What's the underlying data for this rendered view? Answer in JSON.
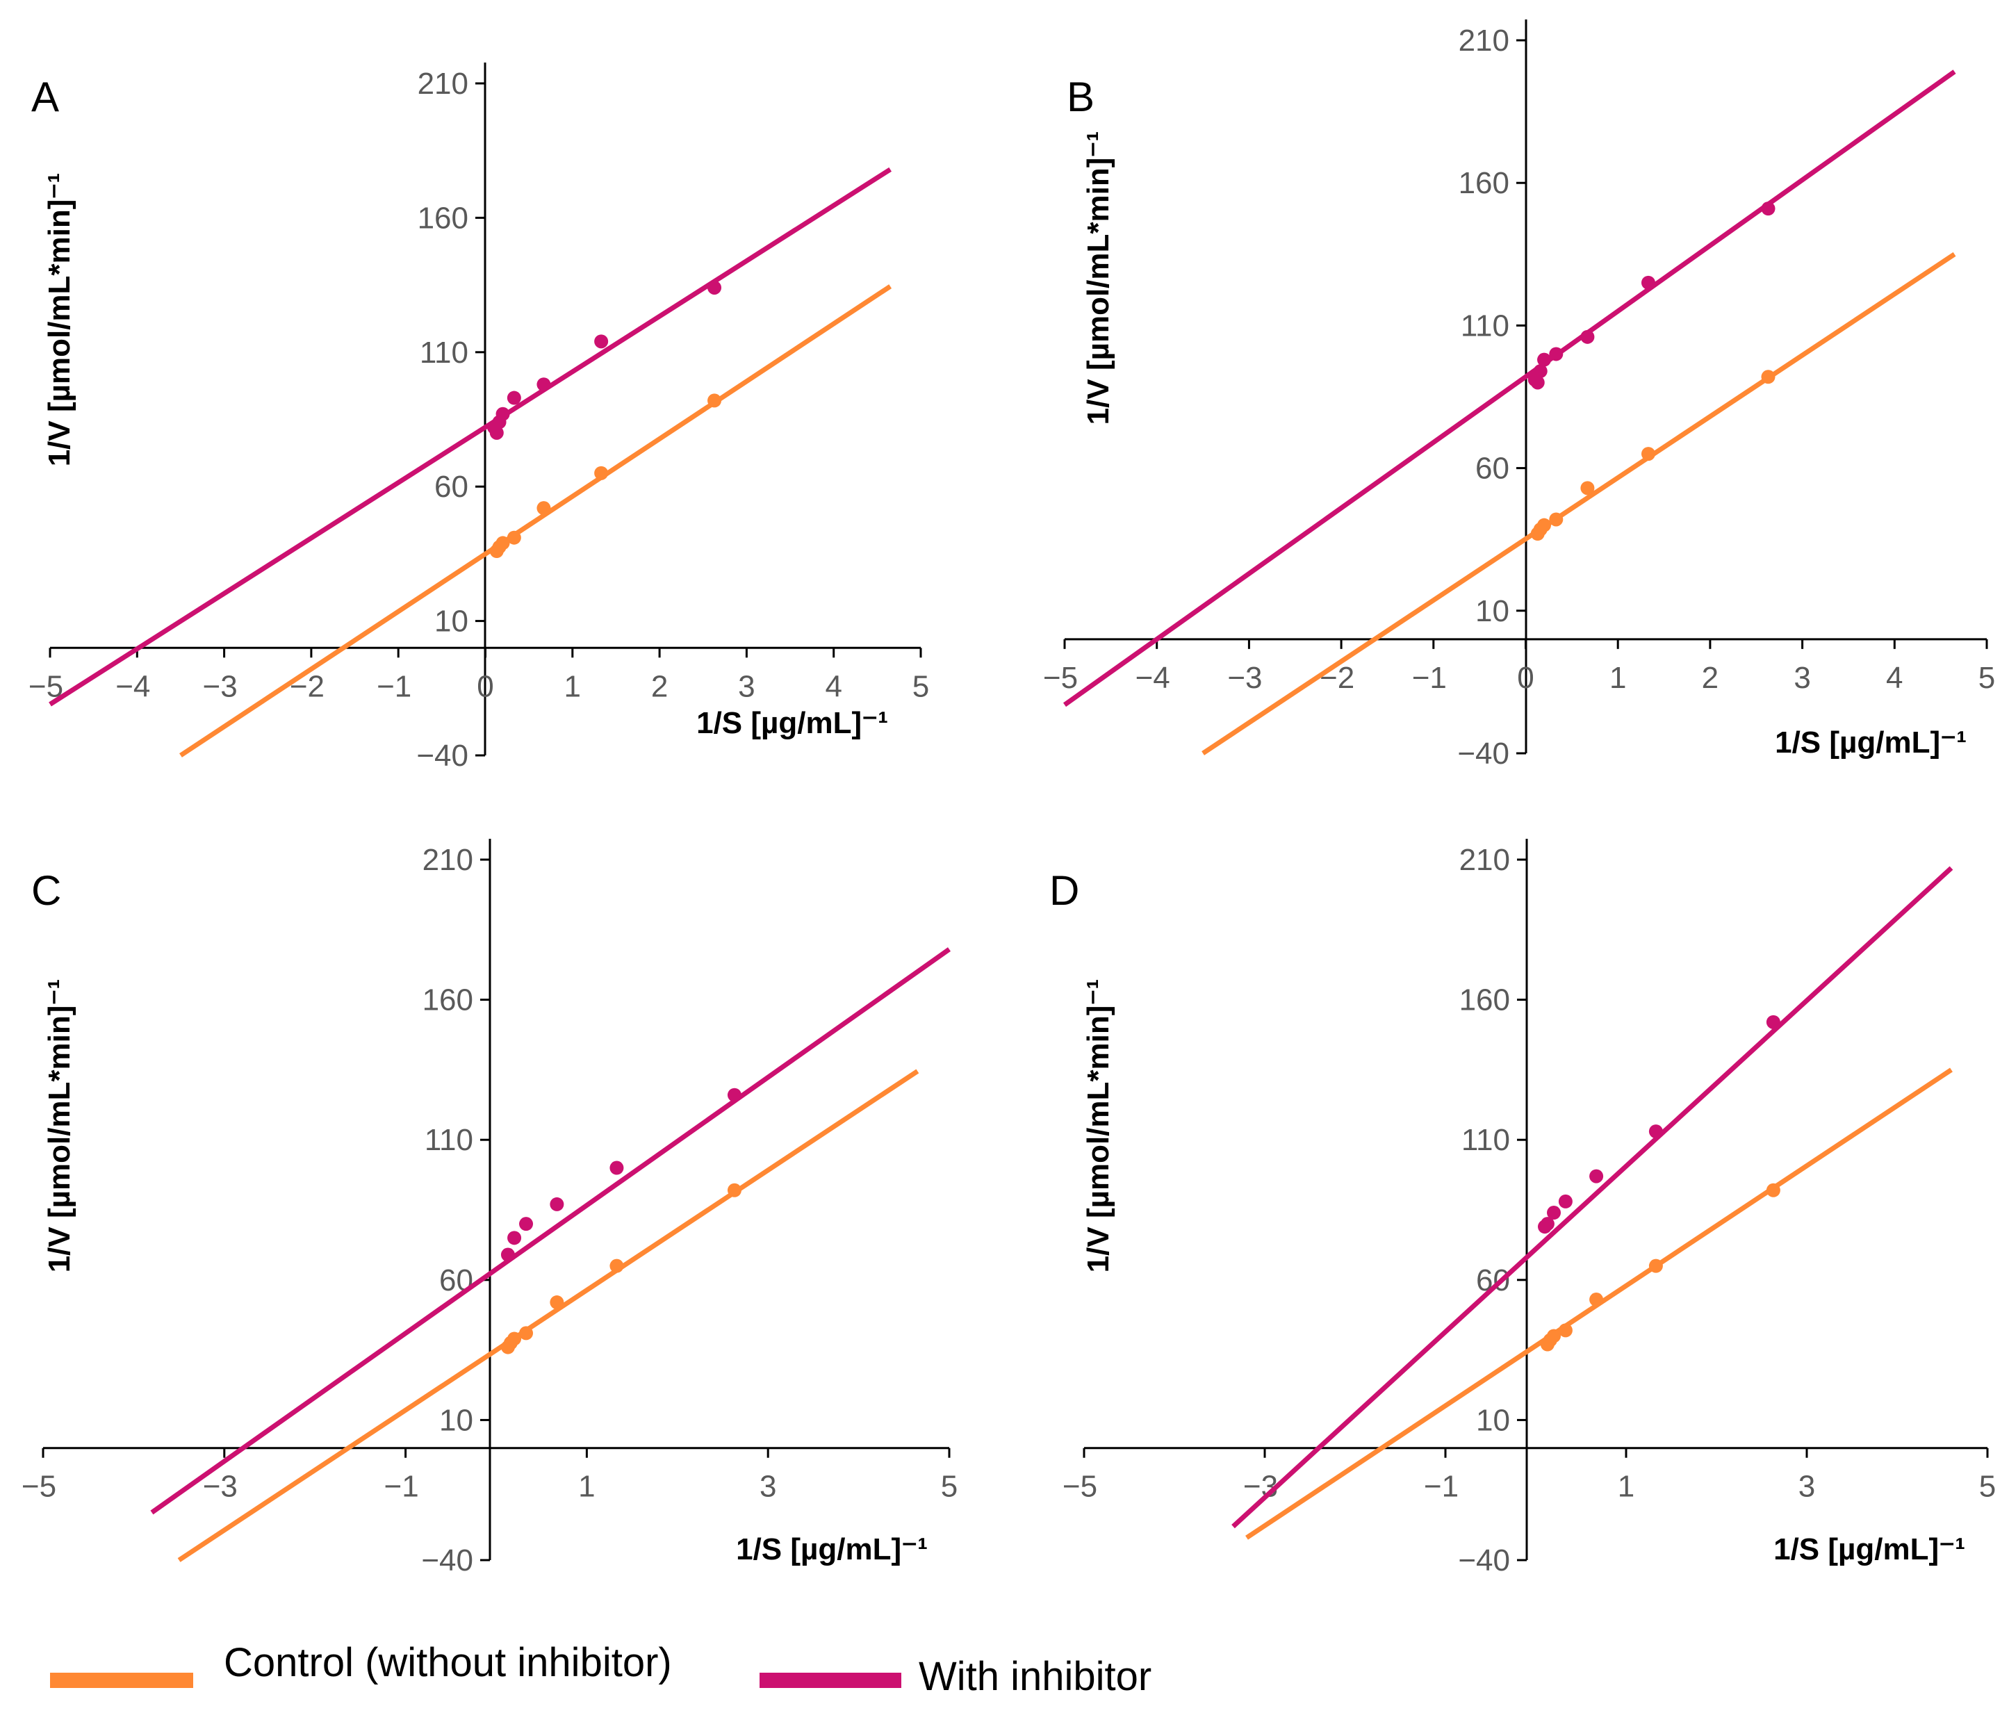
{
  "colors": {
    "control": "#ff8833",
    "inhibitor": "#cc1070",
    "axis": "#000000",
    "tick_text": "#595959"
  },
  "legend": {
    "control_label": "Control (without inhibitor)",
    "inhibitor_label": "With inhibitor"
  },
  "chart_data": [
    {
      "type": "scatter",
      "panel": "A",
      "xlabel": "1/S [µg/mL]⁻¹",
      "ylabel": "1/V  [µmol/mL*min]⁻¹",
      "xlim": [
        -5,
        5
      ],
      "ylim": [
        -40,
        210
      ],
      "xticks": [
        -5,
        -4,
        -3,
        -2,
        -1,
        0,
        1,
        2,
        3,
        4,
        5
      ],
      "xtick_labels": [
        "−5",
        "−4",
        "−3",
        "−2",
        "−1",
        "0",
        "1",
        "2",
        "3",
        "4",
        "5"
      ],
      "yticks": [
        -40,
        10,
        60,
        110,
        160,
        210
      ],
      "ytick_labels": [
        "−40",
        "10",
        "60",
        "110",
        "160",
        "210"
      ],
      "series": [
        {
          "name": "Control (without inhibitor)",
          "color_key": "control",
          "line": {
            "x": [
              -3.5,
              4.65
            ],
            "y": [
              -40,
              134.5
            ]
          },
          "points": [
            {
              "x": 0.13,
              "y": 36
            },
            {
              "x": 0.16,
              "y": 37.5
            },
            {
              "x": 0.2,
              "y": 39
            },
            {
              "x": 0.33,
              "y": 41
            },
            {
              "x": 0.67,
              "y": 52
            },
            {
              "x": 1.33,
              "y": 65
            },
            {
              "x": 2.63,
              "y": 92
            }
          ]
        },
        {
          "name": "With inhibitor",
          "color_key": "inhibitor",
          "line": {
            "x": [
              -5,
              4.65
            ],
            "y": [
              -21,
              178
            ]
          },
          "points": [
            {
              "x": 0.1,
              "y": 82
            },
            {
              "x": 0.13,
              "y": 80
            },
            {
              "x": 0.16,
              "y": 84
            },
            {
              "x": 0.2,
              "y": 87
            },
            {
              "x": 0.33,
              "y": 93
            },
            {
              "x": 0.67,
              "y": 98
            },
            {
              "x": 1.33,
              "y": 114
            },
            {
              "x": 2.63,
              "y": 134
            }
          ]
        }
      ]
    },
    {
      "type": "scatter",
      "panel": "B",
      "xlabel": "1/S [µg/mL]⁻¹",
      "ylabel": "1/V  [µmol/mL*min]⁻¹",
      "xlim": [
        -5,
        5
      ],
      "ylim": [
        -40,
        210
      ],
      "xticks": [
        -5,
        -4,
        -3,
        -2,
        -1,
        0,
        1,
        2,
        3,
        4,
        5
      ],
      "xtick_labels": [
        "−5",
        "−4",
        "−3",
        "−2",
        "−1",
        "0",
        "1",
        "2",
        "3",
        "4",
        "5"
      ],
      "yticks": [
        -40,
        10,
        60,
        110,
        160,
        210
      ],
      "ytick_labels": [
        "−40",
        "10",
        "60",
        "110",
        "160",
        "210"
      ],
      "series": [
        {
          "name": "Control (without inhibitor)",
          "color_key": "control",
          "line": {
            "x": [
              -3.5,
              4.65
            ],
            "y": [
              -40,
              135
            ]
          },
          "points": [
            {
              "x": 0.13,
              "y": 37
            },
            {
              "x": 0.16,
              "y": 38.5
            },
            {
              "x": 0.2,
              "y": 40
            },
            {
              "x": 0.33,
              "y": 42
            },
            {
              "x": 0.67,
              "y": 53
            },
            {
              "x": 1.33,
              "y": 65
            },
            {
              "x": 2.63,
              "y": 92
            }
          ]
        },
        {
          "name": "With inhibitor",
          "color_key": "inhibitor",
          "line": {
            "x": [
              -5,
              4.65
            ],
            "y": [
              -23,
              199
            ]
          },
          "points": [
            {
              "x": 0.1,
              "y": 91
            },
            {
              "x": 0.13,
              "y": 90
            },
            {
              "x": 0.16,
              "y": 94
            },
            {
              "x": 0.2,
              "y": 98
            },
            {
              "x": 0.33,
              "y": 100
            },
            {
              "x": 0.67,
              "y": 106
            },
            {
              "x": 1.33,
              "y": 125
            },
            {
              "x": 2.63,
              "y": 151
            }
          ]
        }
      ]
    },
    {
      "type": "scatter",
      "panel": "C",
      "xlabel": "1/S [µg/mL]⁻¹",
      "ylabel": "1/V  [µmol/mL*min]⁻¹",
      "xlim": [
        -5,
        5
      ],
      "ylim": [
        -40,
        210
      ],
      "xticks": [
        -5,
        -3,
        -1,
        1,
        3,
        5
      ],
      "xtick_labels": [
        "−5",
        "−3",
        "−1",
        "1",
        "3",
        "5"
      ],
      "yticks": [
        -40,
        10,
        60,
        110,
        160,
        210
      ],
      "ytick_labels": [
        "−40",
        "10",
        "60",
        "110",
        "160",
        "210"
      ],
      "series": [
        {
          "name": "Control (without inhibitor)",
          "color_key": "control",
          "line": {
            "x": [
              -3.5,
              4.65
            ],
            "y": [
              -40,
              134.5
            ]
          },
          "points": [
            {
              "x": 0.13,
              "y": 36
            },
            {
              "x": 0.16,
              "y": 37.5
            },
            {
              "x": 0.2,
              "y": 39
            },
            {
              "x": 0.33,
              "y": 41
            },
            {
              "x": 0.67,
              "y": 52
            },
            {
              "x": 1.33,
              "y": 65
            },
            {
              "x": 2.63,
              "y": 92
            }
          ]
        },
        {
          "name": "With inhibitor",
          "color_key": "inhibitor",
          "line": {
            "x": [
              -3.8,
              5.0
            ],
            "y": [
              -23,
              178
            ]
          },
          "points": [
            {
              "x": 0.13,
              "y": 69
            },
            {
              "x": 0.2,
              "y": 75
            },
            {
              "x": 0.33,
              "y": 80
            },
            {
              "x": 0.67,
              "y": 87
            },
            {
              "x": 1.33,
              "y": 100
            },
            {
              "x": 2.63,
              "y": 126
            }
          ]
        }
      ]
    },
    {
      "type": "scatter",
      "panel": "D",
      "xlabel": "1/S [µg/mL]⁻¹",
      "ylabel": "1/V  [µmol/mL*min]⁻¹",
      "xlim": [
        -5,
        5
      ],
      "ylim": [
        -40,
        210
      ],
      "xticks": [
        -5,
        -3,
        -1,
        1,
        3,
        5
      ],
      "xtick_labels": [
        "−5",
        "−3",
        "−1",
        "1",
        "3",
        "5"
      ],
      "yticks": [
        -40,
        10,
        60,
        110,
        160,
        210
      ],
      "ytick_labels": [
        "−40",
        "10",
        "60",
        "110",
        "160",
        "210"
      ],
      "series": [
        {
          "name": "Control (without inhibitor)",
          "color_key": "control",
          "line": {
            "x": [
              -3.2,
              4.6
            ],
            "y": [
              -32,
              135
            ]
          },
          "points": [
            {
              "x": 0.13,
              "y": 37
            },
            {
              "x": 0.16,
              "y": 38.5
            },
            {
              "x": 0.2,
              "y": 40
            },
            {
              "x": 0.33,
              "y": 42
            },
            {
              "x": 0.67,
              "y": 53
            },
            {
              "x": 1.33,
              "y": 65
            },
            {
              "x": 2.63,
              "y": 92
            }
          ]
        },
        {
          "name": "With inhibitor",
          "color_key": "inhibitor",
          "line": {
            "x": [
              -3.35,
              4.6
            ],
            "y": [
              -28,
              207
            ]
          },
          "points": [
            {
              "x": 0.1,
              "y": 79
            },
            {
              "x": 0.13,
              "y": 80
            },
            {
              "x": 0.2,
              "y": 84
            },
            {
              "x": 0.33,
              "y": 88
            },
            {
              "x": 0.67,
              "y": 97
            },
            {
              "x": 1.33,
              "y": 113
            },
            {
              "x": 2.63,
              "y": 152
            }
          ]
        }
      ]
    }
  ]
}
